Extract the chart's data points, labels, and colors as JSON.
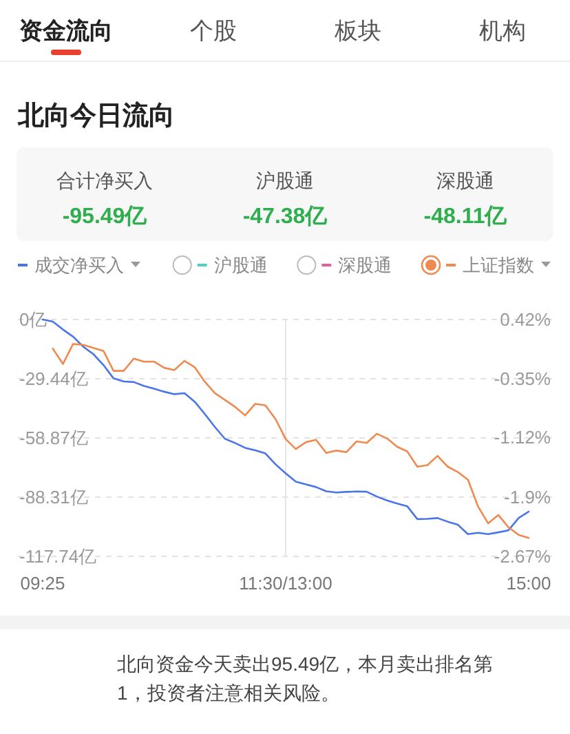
{
  "chart_data": {
    "type": "line",
    "title": "北向今日流向",
    "annotations": [
      "资金流向",
      "个股",
      "板块",
      "机构",
      "合计净买入",
      "-95.49亿",
      "沪股通",
      "-47.38亿",
      "深股通",
      "-48.11亿",
      "北向资金今天卖出95.49亿，本月卖出排名第1，投资者注意相关风险。"
    ],
    "categories": [
      "09:25",
      null,
      null,
      null,
      null,
      null,
      null,
      null,
      null,
      null,
      null,
      null,
      null,
      null,
      null,
      null,
      null,
      null,
      null,
      null,
      null,
      null,
      null,
      null,
      "11:30/13:00",
      null,
      null,
      null,
      null,
      null,
      null,
      null,
      null,
      null,
      null,
      null,
      null,
      null,
      null,
      null,
      null,
      null,
      null,
      null,
      null,
      null,
      null,
      null,
      "15:00"
    ],
    "ylim": [
      -117.74,
      0
    ],
    "yticks": [
      {
        "value": 0,
        "label": "0亿"
      },
      {
        "value": -29.44,
        "label": "-29.44亿"
      },
      {
        "value": -58.87,
        "label": "-58.87亿"
      },
      {
        "value": -88.31,
        "label": "-88.31亿"
      },
      {
        "value": -117.74,
        "label": "-117.74亿"
      }
    ],
    "y2lim": [
      -2.67,
      0.42
    ],
    "y2ticks": [
      {
        "value": 0.42,
        "label": "0.42%"
      },
      {
        "value": -0.35,
        "label": "-0.35%"
      },
      {
        "value": -1.12,
        "label": "-1.12%"
      },
      {
        "value": -1.9,
        "label": "-1.9%"
      },
      {
        "value": -2.67,
        "label": "-2.67%"
      }
    ],
    "grid": true,
    "legend": "top",
    "series": [
      {
        "name": "成交净买入",
        "color": "#4a74e8",
        "values": [
          0,
          -1,
          -5,
          -8.5,
          -13.5,
          -17.2,
          -22.6,
          -29.3,
          -30.8,
          -31.1,
          -33,
          -34.4,
          -35.9,
          -37.1,
          -36.6,
          -40.8,
          -46.9,
          -53.4,
          -59.3,
          -61.4,
          -63.8,
          -65,
          -66.6,
          -72,
          -76.5,
          -80.6,
          -82,
          -83.3,
          -85.4,
          -86,
          -85.7,
          -85.5,
          -85.6,
          -88,
          -89.9,
          -91.5,
          -92.8,
          -99.2,
          -99.1,
          -98.7,
          -100.5,
          -102,
          -106.7,
          -106,
          -106.7,
          -105.8,
          -104.8,
          -98.7,
          -95.5
        ]
      },
      {
        "name": "沪股通",
        "color": "#4fd1c5",
        "values": [
          null,
          null,
          null,
          null,
          null,
          null,
          null,
          null,
          null,
          null,
          null,
          null,
          null,
          null,
          null,
          null,
          null,
          null,
          null,
          null,
          null,
          null,
          null,
          null,
          null,
          null,
          null,
          null,
          null,
          null,
          null,
          null,
          null,
          null,
          null,
          null,
          null,
          null,
          null,
          null,
          null,
          null,
          null,
          null,
          null,
          null,
          null,
          null,
          null
        ]
      },
      {
        "name": "深股通",
        "color": "#e05fa0",
        "values": [
          null,
          null,
          null,
          null,
          null,
          null,
          null,
          null,
          null,
          null,
          null,
          null,
          null,
          null,
          null,
          null,
          null,
          null,
          null,
          null,
          null,
          null,
          null,
          null,
          null,
          null,
          null,
          null,
          null,
          null,
          null,
          null,
          null,
          null,
          null,
          null,
          null,
          null,
          null,
          null,
          null,
          null,
          null,
          null,
          null,
          null,
          null,
          null,
          null
        ]
      },
      {
        "name": "上证指数",
        "axis": "y2",
        "color": "#ee8a4f",
        "values": [
          null,
          0.04,
          -0.16,
          0.1,
          0.09,
          0.05,
          0.01,
          -0.25,
          -0.25,
          -0.09,
          -0.13,
          -0.13,
          -0.21,
          -0.24,
          -0.12,
          -0.2,
          -0.39,
          -0.54,
          -0.63,
          -0.72,
          -0.83,
          -0.68,
          -0.7,
          -0.88,
          -1.14,
          -1.27,
          -1.18,
          -1.15,
          -1.32,
          -1.29,
          -1.31,
          -1.17,
          -1.19,
          -1.07,
          -1.13,
          -1.24,
          -1.3,
          -1.5,
          -1.48,
          -1.36,
          -1.5,
          -1.57,
          -1.67,
          -2.02,
          -2.24,
          -2.13,
          -2.29,
          -2.39,
          -2.43
        ]
      }
    ]
  }
}
